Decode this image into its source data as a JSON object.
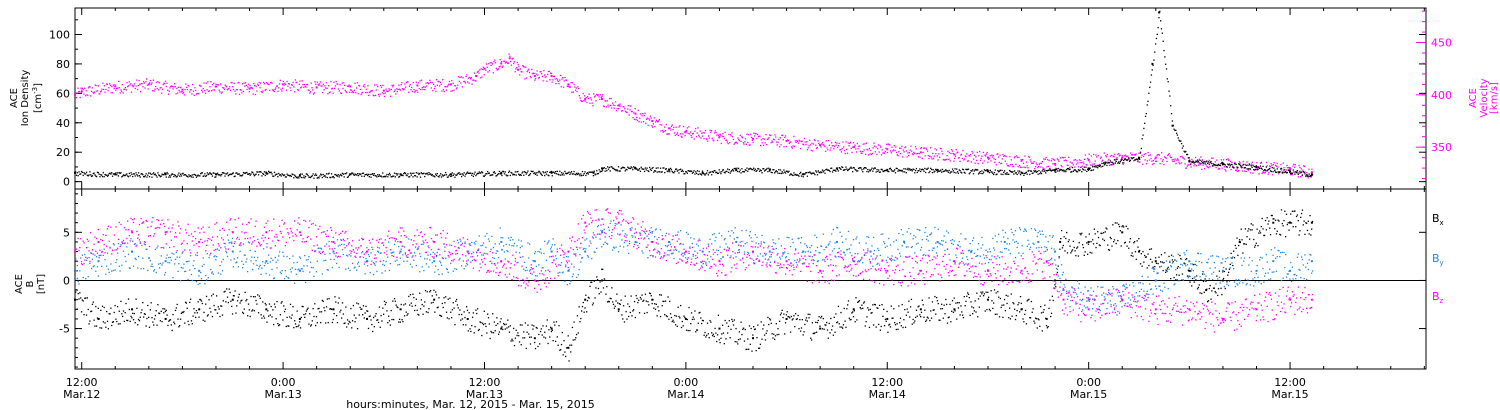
{
  "colors": {
    "black": "#000000",
    "magenta": "#ff00ff",
    "blue": "#1e88e5"
  },
  "chart_data": [
    {
      "type": "scatter",
      "panel": "top",
      "x_axis": {
        "ticks": [
          {
            "time": "12:00",
            "date": "Mar.12",
            "hour": 12
          },
          {
            "time": "0:00",
            "date": "Mar.13",
            "hour": 24
          },
          {
            "time": "12:00",
            "date": "Mar.13",
            "hour": 36
          },
          {
            "time": "0:00",
            "date": "Mar.14",
            "hour": 48
          },
          {
            "time": "12:00",
            "date": "Mar.14",
            "hour": 60
          },
          {
            "time": "0:00",
            "date": "Mar.15",
            "hour": 72
          },
          {
            "time": "12:00",
            "date": "Mar.15",
            "hour": 84
          }
        ],
        "xlim": [
          11.6,
          92.1
        ],
        "xlabel": "hours:minutes, Mar. 12, 2015 - Mar. 15, 2015"
      },
      "left_axis": {
        "label_lines": [
          "ACE",
          "Ion Density"
        ],
        "unit": "[cm",
        "unit_sup": "-3",
        "ticks": [
          "0",
          "20",
          "40",
          "60",
          "80",
          "100"
        ],
        "ylim": [
          -5,
          118
        ],
        "color": "#000000"
      },
      "right_axis": {
        "label_lines": [
          "ACE",
          "Velocity"
        ],
        "unit": "[km/s]",
        "ticks": [
          "350",
          "400",
          "450"
        ],
        "ylim": [
          310,
          483
        ],
        "color": "#ff00ff"
      },
      "series": [
        {
          "axis": "left",
          "color": "#000000",
          "points": [
            [
              11.6,
              6
            ],
            [
              14,
              5
            ],
            [
              17,
              5
            ],
            [
              20,
              5
            ],
            [
              23,
              6
            ],
            [
              25,
              4
            ],
            [
              28,
              5
            ],
            [
              31,
              5
            ],
            [
              34,
              5
            ],
            [
              37,
              6
            ],
            [
              40,
              6
            ],
            [
              42.5,
              6
            ],
            [
              43,
              9
            ],
            [
              45,
              9
            ],
            [
              47,
              8
            ],
            [
              49,
              6
            ],
            [
              51,
              8
            ],
            [
              53,
              8
            ],
            [
              55,
              5
            ],
            [
              57,
              9
            ],
            [
              60,
              8
            ],
            [
              63,
              8
            ],
            [
              66,
              7
            ],
            [
              68,
              6
            ],
            [
              70,
              8
            ],
            [
              72,
              9
            ],
            [
              73,
              13
            ],
            [
              75,
              16
            ],
            [
              75.8,
              80
            ],
            [
              76.2,
              115
            ],
            [
              77,
              38
            ],
            [
              78,
              14
            ],
            [
              80,
              12
            ],
            [
              82,
              10
            ],
            [
              84,
              7
            ],
            [
              85.3,
              5
            ]
          ]
        },
        {
          "axis": "right",
          "color": "#ff00ff",
          "points": [
            [
              11.6,
              400
            ],
            [
              12,
              403
            ],
            [
              14,
              408
            ],
            [
              16,
              410
            ],
            [
              18,
              405
            ],
            [
              20,
              408
            ],
            [
              22,
              406
            ],
            [
              24,
              410
            ],
            [
              26,
              407
            ],
            [
              28,
              408
            ],
            [
              30,
              404
            ],
            [
              32,
              409
            ],
            [
              34,
              410
            ],
            [
              35.5,
              418
            ],
            [
              36,
              425
            ],
            [
              37,
              430
            ],
            [
              37.5,
              435
            ],
            [
              38,
              424
            ],
            [
              39,
              418
            ],
            [
              40,
              418
            ],
            [
              41,
              410
            ],
            [
              42,
              396
            ],
            [
              43,
              396
            ],
            [
              44,
              390
            ],
            [
              45,
              382
            ],
            [
              46,
              375
            ],
            [
              47,
              368
            ],
            [
              48,
              365
            ],
            [
              50,
              360
            ],
            [
              52,
              358
            ],
            [
              54,
              356
            ],
            [
              56,
              352
            ],
            [
              58,
              350
            ],
            [
              60,
              348
            ],
            [
              62,
              345
            ],
            [
              64,
              343
            ],
            [
              66,
              340
            ],
            [
              68,
              337
            ],
            [
              70,
              334
            ],
            [
              72,
              338
            ],
            [
              74,
              340
            ],
            [
              76,
              340
            ],
            [
              78,
              336
            ],
            [
              80,
              334
            ],
            [
              82,
              331
            ],
            [
              84,
              329
            ],
            [
              85.3,
              326
            ]
          ]
        }
      ]
    },
    {
      "type": "scatter",
      "panel": "bottom",
      "left_axis": {
        "label_lines": [
          "ACE",
          "B"
        ],
        "unit": "[nT]",
        "ticks": [
          "-5",
          "0",
          "5"
        ],
        "ylim": [
          -9.2,
          9.5
        ],
        "zero_line": true
      },
      "legend": [
        {
          "base": "B",
          "sub": "x",
          "color": "#000000"
        },
        {
          "base": "B",
          "sub": "y",
          "color": "#1e88e5"
        },
        {
          "base": "B",
          "sub": "z",
          "color": "#ff00ff"
        }
      ],
      "series": [
        {
          "name": "Bx",
          "color": "#000000",
          "points": [
            [
              11.6,
              -2
            ],
            [
              13,
              -4
            ],
            [
              15,
              -3
            ],
            [
              17,
              -4
            ],
            [
              19,
              -3
            ],
            [
              21,
              -2
            ],
            [
              23,
              -3
            ],
            [
              25,
              -4
            ],
            [
              27,
              -3
            ],
            [
              29,
              -4
            ],
            [
              31,
              -3
            ],
            [
              33,
              -2
            ],
            [
              35,
              -4
            ],
            [
              37,
              -5
            ],
            [
              39,
              -6
            ],
            [
              40,
              -5
            ],
            [
              41,
              -7
            ],
            [
              42,
              -2
            ],
            [
              43,
              0
            ],
            [
              44,
              -3
            ],
            [
              46,
              -2
            ],
            [
              48,
              -4
            ],
            [
              50,
              -5
            ],
            [
              52,
              -6
            ],
            [
              54,
              -4
            ],
            [
              56,
              -5
            ],
            [
              58,
              -3
            ],
            [
              60,
              -4
            ],
            [
              62,
              -3
            ],
            [
              64,
              -3
            ],
            [
              66,
              -2
            ],
            [
              68,
              -3
            ],
            [
              69.5,
              -4
            ],
            [
              70,
              0
            ],
            [
              70.3,
              4
            ],
            [
              72,
              4
            ],
            [
              74,
              5
            ],
            [
              75,
              3
            ],
            [
              76,
              2
            ],
            [
              78,
              1
            ],
            [
              79,
              -1
            ],
            [
              80,
              0
            ],
            [
              81,
              4
            ],
            [
              83,
              6
            ],
            [
              84,
              6
            ],
            [
              85.3,
              6
            ]
          ]
        },
        {
          "name": "By",
          "color": "#1e88e5",
          "points": [
            [
              11.6,
              1
            ],
            [
              13,
              2
            ],
            [
              15,
              3
            ],
            [
              17,
              2
            ],
            [
              19,
              1
            ],
            [
              21,
              3
            ],
            [
              23,
              2
            ],
            [
              25,
              1
            ],
            [
              27,
              3
            ],
            [
              29,
              2
            ],
            [
              31,
              3
            ],
            [
              33,
              2
            ],
            [
              35,
              3
            ],
            [
              37,
              4
            ],
            [
              39,
              2
            ],
            [
              40,
              3
            ],
            [
              41,
              1
            ],
            [
              42,
              3
            ],
            [
              43,
              5
            ],
            [
              45,
              4
            ],
            [
              47,
              4
            ],
            [
              49,
              3
            ],
            [
              51,
              4
            ],
            [
              53,
              3
            ],
            [
              55,
              3
            ],
            [
              57,
              4
            ],
            [
              59,
              3
            ],
            [
              61,
              4
            ],
            [
              63,
              4
            ],
            [
              65,
              3
            ],
            [
              67,
              4
            ],
            [
              69,
              4
            ],
            [
              70,
              3
            ],
            [
              70.5,
              -1
            ],
            [
              72,
              -2
            ],
            [
              74,
              -2
            ],
            [
              76,
              0
            ],
            [
              78,
              2
            ],
            [
              80,
              1
            ],
            [
              82,
              1
            ],
            [
              83,
              2
            ],
            [
              84,
              1
            ],
            [
              85.3,
              2
            ]
          ]
        },
        {
          "name": "Bz",
          "color": "#ff00ff",
          "points": [
            [
              11.6,
              3
            ],
            [
              13,
              4
            ],
            [
              15,
              5
            ],
            [
              17,
              5
            ],
            [
              19,
              4
            ],
            [
              21,
              5
            ],
            [
              23,
              5
            ],
            [
              25,
              5
            ],
            [
              27,
              4
            ],
            [
              29,
              3
            ],
            [
              31,
              4
            ],
            [
              33,
              4
            ],
            [
              35,
              3
            ],
            [
              37,
              2
            ],
            [
              39,
              0
            ],
            [
              41,
              3
            ],
            [
              42,
              6
            ],
            [
              44,
              6
            ],
            [
              46,
              4
            ],
            [
              48,
              3
            ],
            [
              50,
              2
            ],
            [
              52,
              3
            ],
            [
              54,
              2
            ],
            [
              56,
              1
            ],
            [
              58,
              2
            ],
            [
              60,
              1
            ],
            [
              62,
              1
            ],
            [
              64,
              2
            ],
            [
              66,
              1
            ],
            [
              68,
              1
            ],
            [
              69.5,
              2
            ],
            [
              70.5,
              -2
            ],
            [
              72,
              -3
            ],
            [
              74,
              -2
            ],
            [
              76,
              -3
            ],
            [
              78,
              -3
            ],
            [
              80,
              -4
            ],
            [
              82,
              -3
            ],
            [
              84,
              -2
            ],
            [
              85.3,
              -2
            ]
          ]
        }
      ]
    }
  ]
}
